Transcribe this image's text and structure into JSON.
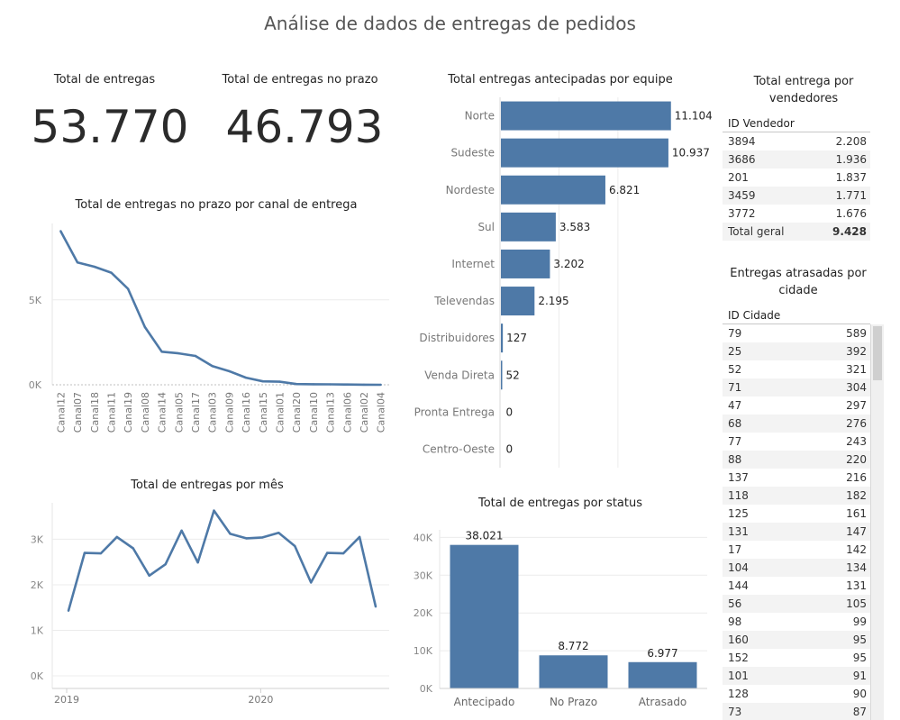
{
  "dashboard": {
    "title": "Análise de dados de entregas de pedidos"
  },
  "kpis": [
    {
      "label": "Total de entregas",
      "value": "53.770"
    },
    {
      "label": "Total de entregas no prazo",
      "value": "46.793"
    }
  ],
  "colors": {
    "bar": "#4e79a7",
    "line": "#4e79a7",
    "grid": "#ececec",
    "stripe": "#f3f3f3"
  },
  "chart_data": [
    {
      "id": "canal",
      "type": "line",
      "title": "Total de entregas no prazo por canal de entrega",
      "xlabel": "",
      "ylabel": "",
      "categories": [
        "Canal12",
        "Canal07",
        "Canal18",
        "Canal11",
        "Canal19",
        "Canal08",
        "Canal14",
        "Canal05",
        "Canal17",
        "Canal03",
        "Canal09",
        "Canal16",
        "Canal15",
        "Canal01",
        "Canal20",
        "Canal10",
        "Canal13",
        "Canal06",
        "Canal02",
        "Canal04"
      ],
      "values": [
        9050,
        7200,
        6950,
        6600,
        5650,
        3400,
        1950,
        1850,
        1700,
        1100,
        800,
        420,
        200,
        180,
        40,
        30,
        25,
        15,
        5,
        2
      ],
      "ylim": [
        0,
        9500
      ],
      "yticks": [
        {
          "v": 0,
          "label": "0K"
        },
        {
          "v": 5000,
          "label": "5K"
        }
      ],
      "grid": true
    },
    {
      "id": "mes",
      "type": "line",
      "title": "Total de entregas por mês",
      "xlabel": "",
      "ylabel": "",
      "x": [
        "2019-01",
        "2019-02",
        "2019-03",
        "2019-04",
        "2019-05",
        "2019-06",
        "2019-07",
        "2019-08",
        "2019-09",
        "2019-10",
        "2019-11",
        "2019-12",
        "2020-01",
        "2020-02",
        "2020-03",
        "2020-04",
        "2020-05",
        "2020-06",
        "2020-07",
        "2020-08"
      ],
      "values": [
        1430,
        2700,
        2690,
        3050,
        2800,
        2200,
        2450,
        3190,
        2490,
        3630,
        3120,
        3020,
        3040,
        3140,
        2850,
        2050,
        2700,
        2690,
        3050,
        1520
      ],
      "ylim": [
        0,
        3800
      ],
      "yticks": [
        {
          "v": 0,
          "label": "0K"
        },
        {
          "v": 1000,
          "label": "1K"
        },
        {
          "v": 2000,
          "label": "2K"
        },
        {
          "v": 3000,
          "label": "3K"
        }
      ],
      "xticks": [
        {
          "x": "2019-01",
          "label": "2019"
        },
        {
          "x": "2020-01",
          "label": "2020"
        }
      ],
      "grid": true
    },
    {
      "id": "equipe",
      "type": "bar",
      "orientation": "horizontal",
      "title": "Total entregas antecipadas por equipe",
      "categories": [
        "Norte",
        "Sudeste",
        "Nordeste",
        "Sul",
        "Internet",
        "Televendas",
        "Distribuidores",
        "Venda Direta",
        "Pronta Entrega",
        "Centro-Oeste"
      ],
      "values": [
        11104,
        10937,
        6821,
        3583,
        3202,
        2195,
        127,
        52,
        0,
        0
      ],
      "labels": [
        "11.104",
        "10.937",
        "6.821",
        "3.583",
        "3.202",
        "2.195",
        "127",
        "52",
        "0",
        "0"
      ],
      "xlim": [
        0,
        14000
      ],
      "grid": true
    },
    {
      "id": "status",
      "type": "bar",
      "title": "Total de entregas por status",
      "categories": [
        "Antecipado",
        "No Prazo",
        "Atrasado"
      ],
      "values": [
        38021,
        8772,
        6977
      ],
      "labels": [
        "38.021",
        "8.772",
        "6.977"
      ],
      "ylim": [
        0,
        42000
      ],
      "yticks": [
        {
          "v": 0,
          "label": "0K"
        },
        {
          "v": 10000,
          "label": "10K"
        },
        {
          "v": 20000,
          "label": "20K"
        },
        {
          "v": 30000,
          "label": "30K"
        },
        {
          "v": 40000,
          "label": "40K"
        }
      ],
      "grid": true
    }
  ],
  "vendedores": {
    "title_line1": "Total entrega por",
    "title_line2": "vendedores",
    "column": "ID Vendedor",
    "rows": [
      {
        "id": "3894",
        "value": "2.208"
      },
      {
        "id": "3686",
        "value": "1.936"
      },
      {
        "id": "201",
        "value": "1.837"
      },
      {
        "id": "3459",
        "value": "1.771"
      },
      {
        "id": "3772",
        "value": "1.676"
      }
    ],
    "total_label": "Total geral",
    "total_value": "9.428"
  },
  "cidades": {
    "title_line1": "Entregas atrasadas por",
    "title_line2": "cidade",
    "column": "ID Cidade",
    "rows": [
      {
        "id": "79",
        "value": "589"
      },
      {
        "id": "25",
        "value": "392"
      },
      {
        "id": "52",
        "value": "321"
      },
      {
        "id": "71",
        "value": "304"
      },
      {
        "id": "47",
        "value": "297"
      },
      {
        "id": "68",
        "value": "276"
      },
      {
        "id": "77",
        "value": "243"
      },
      {
        "id": "88",
        "value": "220"
      },
      {
        "id": "137",
        "value": "216"
      },
      {
        "id": "118",
        "value": "182"
      },
      {
        "id": "125",
        "value": "161"
      },
      {
        "id": "131",
        "value": "147"
      },
      {
        "id": "17",
        "value": "142"
      },
      {
        "id": "104",
        "value": "134"
      },
      {
        "id": "144",
        "value": "131"
      },
      {
        "id": "56",
        "value": "105"
      },
      {
        "id": "98",
        "value": "99"
      },
      {
        "id": "160",
        "value": "95"
      },
      {
        "id": "152",
        "value": "95"
      },
      {
        "id": "101",
        "value": "91"
      },
      {
        "id": "128",
        "value": "90"
      },
      {
        "id": "73",
        "value": "87"
      }
    ]
  }
}
